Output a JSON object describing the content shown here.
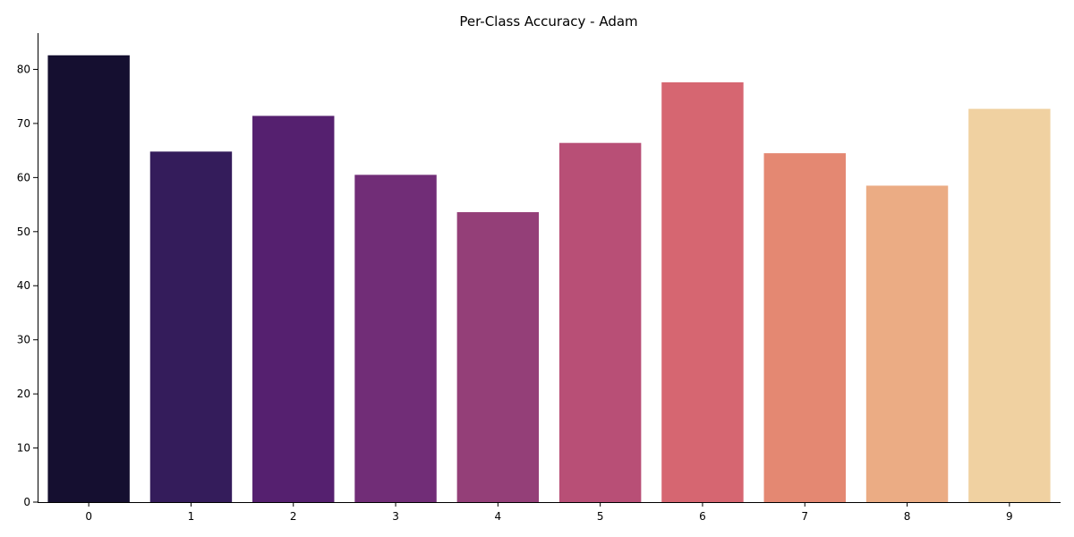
{
  "chart_data": {
    "type": "bar",
    "title": "Per-Class Accuracy - Adam",
    "xlabel": "",
    "ylabel": "",
    "categories": [
      "0",
      "1",
      "2",
      "3",
      "4",
      "5",
      "6",
      "7",
      "8",
      "9"
    ],
    "values": [
      82.6,
      64.8,
      71.4,
      60.5,
      53.6,
      66.4,
      77.6,
      64.5,
      58.5,
      72.7
    ],
    "colors": [
      "#150f30",
      "#341c5b",
      "#55206f",
      "#712d77",
      "#943f78",
      "#b84f76",
      "#d66671",
      "#e48872",
      "#ebac84",
      "#f0d1a1"
    ],
    "ylim": [
      0,
      86.7
    ],
    "yticks": [
      0,
      10,
      20,
      30,
      40,
      50,
      60,
      70,
      80
    ],
    "grid": false,
    "legend": "none"
  }
}
